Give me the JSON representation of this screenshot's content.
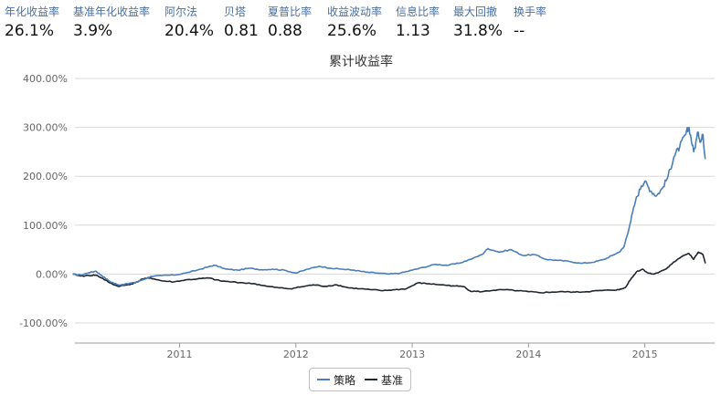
{
  "metrics": [
    {
      "label": "年化收益率",
      "value": "26.1%"
    },
    {
      "label": "基准年化收益率",
      "value": "3.9%"
    },
    {
      "label": "阿尔法",
      "value": "20.4%"
    },
    {
      "label": "贝塔",
      "value": "0.81"
    },
    {
      "label": "夏普比率",
      "value": "0.88"
    },
    {
      "label": "收益波动率",
      "value": "25.6%"
    },
    {
      "label": "信息比率",
      "value": "1.13"
    },
    {
      "label": "最大回撤",
      "value": "31.8%"
    },
    {
      "label": "换手率",
      "value": "--"
    }
  ],
  "colors": {
    "strategy": "#4a7ebb",
    "benchmark": "#1f2630",
    "metric_label": "#4a6f9e"
  },
  "chart_data": {
    "type": "line",
    "title": "累计收益率",
    "xlabel": "",
    "ylabel": "",
    "ylim": [
      -150,
      400
    ],
    "yticks": [
      -100,
      0,
      100,
      200,
      300,
      400
    ],
    "ytick_labels": [
      "-100.00%",
      "0.00%",
      "100.00%",
      "200.00%",
      "300.00%",
      "400.00%"
    ],
    "xlim": [
      2010.1,
      2015.6
    ],
    "xticks": [
      2011,
      2012,
      2013,
      2014,
      2015
    ],
    "xtick_labels": [
      "2011",
      "2012",
      "2013",
      "2014",
      "2015"
    ],
    "grid": true,
    "legend_position": "bottom-center",
    "series": [
      {
        "name": "策略",
        "points": [
          [
            2010.08,
            0
          ],
          [
            2010.15,
            -2
          ],
          [
            2010.22,
            3
          ],
          [
            2010.28,
            6
          ],
          [
            2010.33,
            -3
          ],
          [
            2010.4,
            -15
          ],
          [
            2010.47,
            -22
          ],
          [
            2010.55,
            -20
          ],
          [
            2010.62,
            -17
          ],
          [
            2010.68,
            -12
          ],
          [
            2010.75,
            -5
          ],
          [
            2010.85,
            -3
          ],
          [
            2010.95,
            -2
          ],
          [
            2011.05,
            2
          ],
          [
            2011.15,
            8
          ],
          [
            2011.25,
            15
          ],
          [
            2011.3,
            18
          ],
          [
            2011.4,
            10
          ],
          [
            2011.5,
            8
          ],
          [
            2011.6,
            12
          ],
          [
            2011.7,
            9
          ],
          [
            2011.8,
            10
          ],
          [
            2011.9,
            8
          ],
          [
            2012.0,
            2
          ],
          [
            2012.1,
            10
          ],
          [
            2012.2,
            16
          ],
          [
            2012.3,
            12
          ],
          [
            2012.4,
            10
          ],
          [
            2012.5,
            8
          ],
          [
            2012.6,
            4
          ],
          [
            2012.7,
            2
          ],
          [
            2012.8,
            0
          ],
          [
            2012.9,
            2
          ],
          [
            2013.0,
            8
          ],
          [
            2013.1,
            14
          ],
          [
            2013.2,
            20
          ],
          [
            2013.3,
            18
          ],
          [
            2013.4,
            22
          ],
          [
            2013.5,
            30
          ],
          [
            2013.6,
            40
          ],
          [
            2013.65,
            52
          ],
          [
            2013.75,
            45
          ],
          [
            2013.85,
            50
          ],
          [
            2013.95,
            38
          ],
          [
            2014.05,
            40
          ],
          [
            2014.15,
            30
          ],
          [
            2014.25,
            28
          ],
          [
            2014.35,
            26
          ],
          [
            2014.45,
            22
          ],
          [
            2014.55,
            24
          ],
          [
            2014.65,
            30
          ],
          [
            2014.72,
            38
          ],
          [
            2014.78,
            45
          ],
          [
            2014.82,
            55
          ],
          [
            2014.87,
            100
          ],
          [
            2014.92,
            150
          ],
          [
            2014.97,
            180
          ],
          [
            2015.0,
            190
          ],
          [
            2015.05,
            170
          ],
          [
            2015.1,
            160
          ],
          [
            2015.15,
            175
          ],
          [
            2015.2,
            200
          ],
          [
            2015.25,
            240
          ],
          [
            2015.3,
            260
          ],
          [
            2015.35,
            285
          ],
          [
            2015.38,
            300
          ],
          [
            2015.42,
            250
          ],
          [
            2015.46,
            290
          ],
          [
            2015.48,
            270
          ],
          [
            2015.5,
            285
          ],
          [
            2015.52,
            235
          ]
        ]
      },
      {
        "name": "基准",
        "points": [
          [
            2010.08,
            0
          ],
          [
            2010.15,
            -4
          ],
          [
            2010.22,
            -3
          ],
          [
            2010.28,
            -2
          ],
          [
            2010.33,
            -8
          ],
          [
            2010.4,
            -18
          ],
          [
            2010.47,
            -25
          ],
          [
            2010.55,
            -22
          ],
          [
            2010.62,
            -18
          ],
          [
            2010.68,
            -10
          ],
          [
            2010.75,
            -8
          ],
          [
            2010.85,
            -14
          ],
          [
            2010.95,
            -16
          ],
          [
            2011.05,
            -12
          ],
          [
            2011.15,
            -10
          ],
          [
            2011.25,
            -8
          ],
          [
            2011.35,
            -14
          ],
          [
            2011.45,
            -16
          ],
          [
            2011.55,
            -18
          ],
          [
            2011.65,
            -20
          ],
          [
            2011.75,
            -25
          ],
          [
            2011.85,
            -28
          ],
          [
            2011.95,
            -30
          ],
          [
            2012.05,
            -26
          ],
          [
            2012.15,
            -22
          ],
          [
            2012.25,
            -25
          ],
          [
            2012.35,
            -22
          ],
          [
            2012.45,
            -28
          ],
          [
            2012.55,
            -30
          ],
          [
            2012.65,
            -32
          ],
          [
            2012.75,
            -34
          ],
          [
            2012.85,
            -32
          ],
          [
            2012.95,
            -30
          ],
          [
            2013.05,
            -18
          ],
          [
            2013.15,
            -20
          ],
          [
            2013.25,
            -22
          ],
          [
            2013.35,
            -24
          ],
          [
            2013.45,
            -26
          ],
          [
            2013.5,
            -35
          ],
          [
            2013.6,
            -36
          ],
          [
            2013.7,
            -33
          ],
          [
            2013.8,
            -32
          ],
          [
            2013.9,
            -34
          ],
          [
            2014.0,
            -36
          ],
          [
            2014.1,
            -38
          ],
          [
            2014.2,
            -37
          ],
          [
            2014.3,
            -36
          ],
          [
            2014.4,
            -37
          ],
          [
            2014.5,
            -36
          ],
          [
            2014.6,
            -34
          ],
          [
            2014.7,
            -33
          ],
          [
            2014.78,
            -32
          ],
          [
            2014.83,
            -28
          ],
          [
            2014.88,
            -10
          ],
          [
            2014.93,
            5
          ],
          [
            2014.98,
            10
          ],
          [
            2015.03,
            2
          ],
          [
            2015.08,
            0
          ],
          [
            2015.13,
            5
          ],
          [
            2015.18,
            10
          ],
          [
            2015.23,
            20
          ],
          [
            2015.28,
            30
          ],
          [
            2015.33,
            38
          ],
          [
            2015.38,
            42
          ],
          [
            2015.42,
            30
          ],
          [
            2015.46,
            45
          ],
          [
            2015.5,
            40
          ],
          [
            2015.52,
            22
          ]
        ]
      }
    ]
  }
}
